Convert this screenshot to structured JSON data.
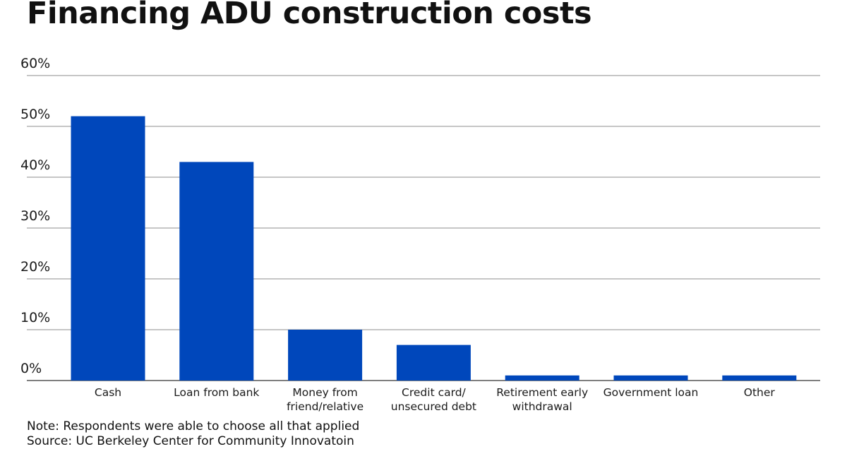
{
  "title": "Financing ADU construction costs",
  "note": "Note: Respondents were able to choose all that applied",
  "source": "Source: UC Berkeley Center for Community Innovatoin",
  "colors": {
    "bar": "#0047bb",
    "grid": "#8c8c8c",
    "axis": "#333333",
    "text": "#1a1a1a"
  },
  "chart_data": {
    "type": "bar",
    "title": "Financing ADU construction costs",
    "xlabel": "",
    "ylabel": "",
    "ylim": [
      0,
      60
    ],
    "yticks": [
      0,
      10,
      20,
      30,
      40,
      50,
      60
    ],
    "ytick_labels": [
      "0%",
      "10%",
      "20%",
      "30%",
      "40%",
      "50%",
      "60%"
    ],
    "grid": true,
    "categories": [
      [
        "Cash"
      ],
      [
        "Loan from bank"
      ],
      [
        "Money from",
        "friend/relative"
      ],
      [
        "Credit card/",
        "unsecured debt"
      ],
      [
        "Retirement early",
        "withdrawal"
      ],
      [
        "Government loan"
      ],
      [
        "Other"
      ]
    ],
    "values": [
      52,
      43,
      10,
      7,
      1,
      1,
      1
    ]
  }
}
